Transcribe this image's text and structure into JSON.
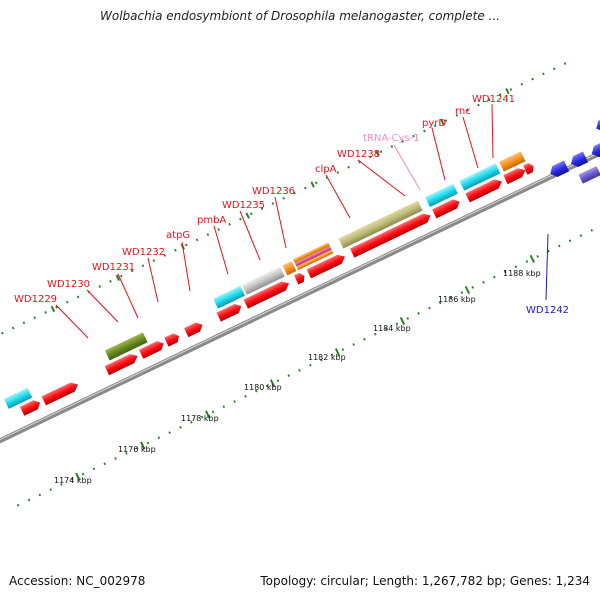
{
  "title": "Wolbachia endosymbiont of Drosophila melanogaster, complete ...",
  "footer": {
    "accession": "Accession: NC_002978",
    "stats": "Topology: circular; Length: 1,267,782 bp; Genes: 1,234"
  },
  "ruler_labels": [
    "1174 kbp",
    "1176 kbp",
    "1178 kbp",
    "1180 kbp",
    "1182 kbp",
    "1184 kbp",
    "1186 kbp",
    "1188 kbp"
  ],
  "gene_labels": [
    {
      "text": "WD1229",
      "color": "#e8101a"
    },
    {
      "text": "WD1230",
      "color": "#e8101a"
    },
    {
      "text": "WD1231",
      "color": "#e8101a"
    },
    {
      "text": "WD1232",
      "color": "#e8101a"
    },
    {
      "text": "atpG",
      "color": "#e8101a"
    },
    {
      "text": "pmbA",
      "color": "#e8101a"
    },
    {
      "text": "WD1235",
      "color": "#e8101a"
    },
    {
      "text": "WD1236",
      "color": "#e8101a"
    },
    {
      "text": "clpA",
      "color": "#e8101a"
    },
    {
      "text": "WD1238",
      "color": "#e8101a"
    },
    {
      "text": "tRNA-Cys-1",
      "color": "#f08cc4"
    },
    {
      "text": "pyrD",
      "color": "#e8101a"
    },
    {
      "text": "rnc",
      "color": "#e8101a"
    },
    {
      "text": "WD1241",
      "color": "#e8101a"
    },
    {
      "text": "WD1242",
      "color": "#1a1acc"
    }
  ],
  "colors": {
    "gene_red": "#ff0d12",
    "cyan": "#1fdcef",
    "olive": "#6b8a22",
    "khaki": "#bfbb78",
    "silver": "#c4c4c4",
    "orange": "#f7931e",
    "pink": "#e0588a",
    "blue": "#2a2ae0",
    "slate": "#6a5acd",
    "ruler_green": "#2d7d2d"
  }
}
